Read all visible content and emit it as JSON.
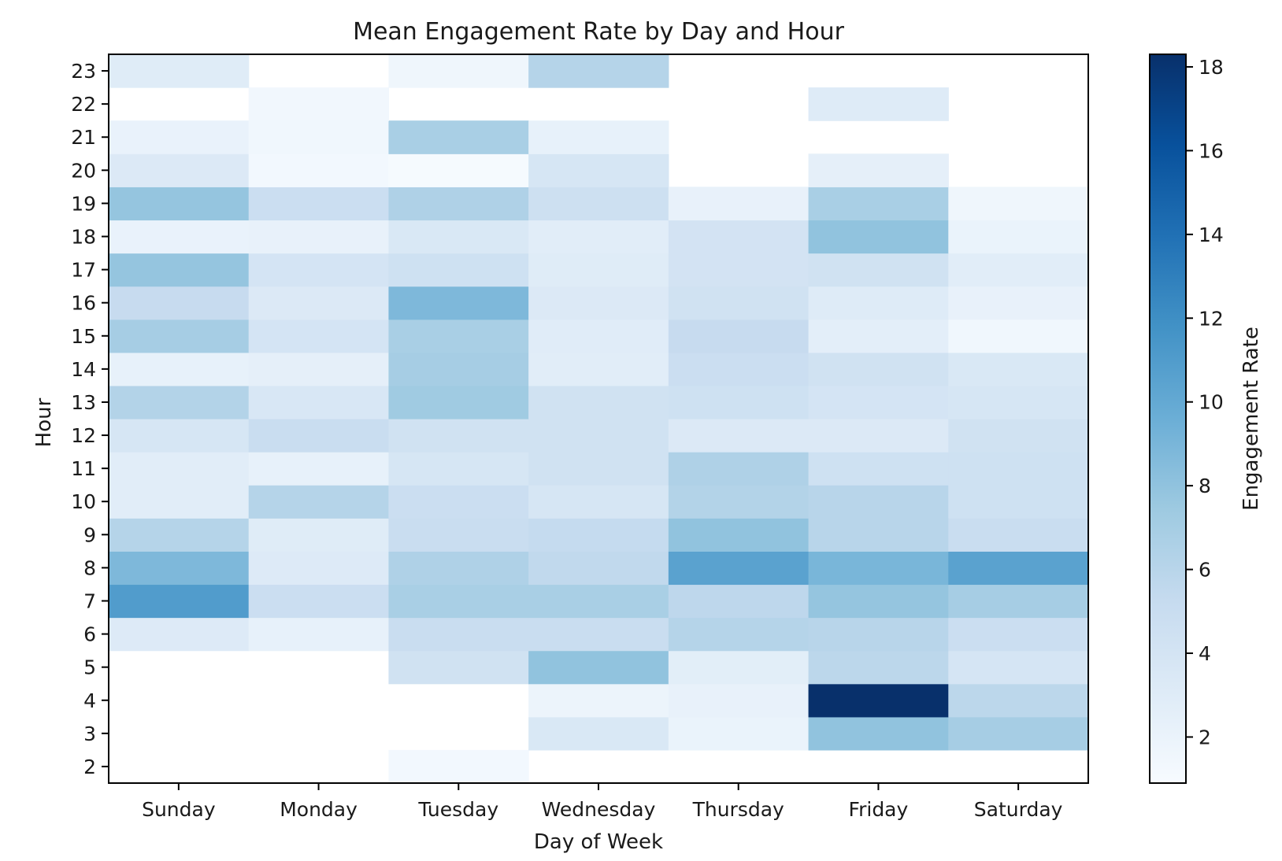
{
  "chart_data": {
    "type": "heatmap",
    "title": "Mean Engagement Rate by Day and Hour",
    "xlabel": "Day of Week",
    "ylabel": "Hour",
    "x_categories": [
      "Sunday",
      "Monday",
      "Tuesday",
      "Wednesday",
      "Thursday",
      "Friday",
      "Saturday"
    ],
    "y_categories": [
      2,
      3,
      4,
      5,
      6,
      7,
      8,
      9,
      10,
      11,
      12,
      13,
      14,
      15,
      16,
      17,
      18,
      19,
      20,
      21,
      22,
      23
    ],
    "colorscale": "Blues",
    "colorbar": {
      "label": "Engagement Rate",
      "min": 0.9,
      "max": 18.3,
      "ticks": [
        2,
        4,
        6,
        8,
        10,
        12,
        14,
        16,
        18
      ]
    },
    "values_note": "rows follow y_categories (hour), columns follow x_categories; null = no data",
    "values": [
      [
        null,
        null,
        1.3,
        null,
        null,
        null,
        null
      ],
      [
        null,
        null,
        null,
        3.5,
        2.0,
        8.0,
        7.0
      ],
      [
        null,
        null,
        null,
        1.9,
        2.2,
        18.3,
        5.8
      ],
      [
        null,
        null,
        4.3,
        8.0,
        2.7,
        5.8,
        3.9
      ],
      [
        3.2,
        2.3,
        5.0,
        5.0,
        6.2,
        6.0,
        4.8
      ],
      [
        11.0,
        4.8,
        6.8,
        6.8,
        5.7,
        7.8,
        7.0
      ],
      [
        8.8,
        3.2,
        6.5,
        5.5,
        10.5,
        9.0,
        10.5
      ],
      [
        6.2,
        3.0,
        5.0,
        5.3,
        8.0,
        6.0,
        5.0
      ],
      [
        2.8,
        6.2,
        4.8,
        3.8,
        6.3,
        6.0,
        4.5
      ],
      [
        2.8,
        2.3,
        3.8,
        4.3,
        6.5,
        4.5,
        4.5
      ],
      [
        3.8,
        5.0,
        4.3,
        4.3,
        3.3,
        3.3,
        4.3
      ],
      [
        6.3,
        3.6,
        7.3,
        4.3,
        4.5,
        4.0,
        3.8
      ],
      [
        2.3,
        2.5,
        7.0,
        2.8,
        4.8,
        4.3,
        3.5
      ],
      [
        7.0,
        4.0,
        6.8,
        2.9,
        5.2,
        2.6,
        1.5
      ],
      [
        5.2,
        3.3,
        8.8,
        3.3,
        4.3,
        3.1,
        2.2
      ],
      [
        7.8,
        4.0,
        4.5,
        3.0,
        4.1,
        4.3,
        2.8
      ],
      [
        2.1,
        2.2,
        3.5,
        2.8,
        4.1,
        8.0,
        2.0
      ],
      [
        7.8,
        4.8,
        6.5,
        4.6,
        2.2,
        6.8,
        1.6
      ],
      [
        3.3,
        1.3,
        1.1,
        3.8,
        null,
        2.5,
        null
      ],
      [
        2.1,
        1.5,
        6.8,
        2.3,
        null,
        null,
        null
      ],
      [
        null,
        1.4,
        null,
        null,
        null,
        3.1,
        null
      ],
      [
        3.0,
        null,
        1.6,
        6.2,
        null,
        null,
        null
      ]
    ]
  }
}
